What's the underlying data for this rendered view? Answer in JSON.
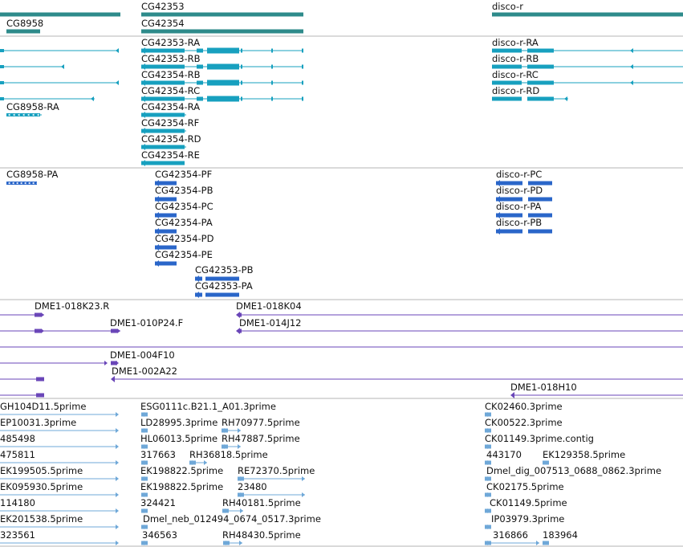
{
  "colors": {
    "gene": "#2e8b8b",
    "transcript": "#17a0bf",
    "cds": "#2a66c9",
    "clone": "#6a46b8",
    "est": "#6fa8d8",
    "separator": "#b4b4b4"
  },
  "tracks": {
    "genes": [
      {
        "label": "CG8958",
        "icon": "gene-bar"
      },
      {
        "label": "CG42353",
        "icon": "gene-bar"
      },
      {
        "label": "CG42354",
        "icon": "gene-bar"
      },
      {
        "label": "disco-r",
        "icon": "gene-bar"
      }
    ],
    "transcripts": [
      {
        "label": "CG8958-RA"
      },
      {
        "label": "CG42353-RA"
      },
      {
        "label": "CG42353-RB"
      },
      {
        "label": "CG42354-RB"
      },
      {
        "label": "CG42354-RC"
      },
      {
        "label": "CG42354-RA"
      },
      {
        "label": "CG42354-RF"
      },
      {
        "label": "CG42354-RD"
      },
      {
        "label": "CG42354-RE"
      },
      {
        "label": "disco-r-RA"
      },
      {
        "label": "disco-r-RB"
      },
      {
        "label": "disco-r-RC"
      },
      {
        "label": "disco-r-RD"
      }
    ],
    "proteins": [
      {
        "label": "CG8958-PA"
      },
      {
        "label": "CG42354-PF"
      },
      {
        "label": "CG42354-PB"
      },
      {
        "label": "CG42354-PC"
      },
      {
        "label": "CG42354-PA"
      },
      {
        "label": "CG42354-PD"
      },
      {
        "label": "CG42354-PE"
      },
      {
        "label": "CG42353-PB"
      },
      {
        "label": "CG42353-PA"
      },
      {
        "label": "disco-r-PC"
      },
      {
        "label": "disco-r-PD"
      },
      {
        "label": "disco-r-PA"
      },
      {
        "label": "disco-r-PB"
      }
    ],
    "clones": [
      {
        "label": "DME1-018K23.R"
      },
      {
        "label": "DME1-010P24.F"
      },
      {
        "label": "DME1-018K04"
      },
      {
        "label": "DME1-014J12"
      },
      {
        "label": "DME1-004F10"
      },
      {
        "label": "DME1-002A22"
      },
      {
        "label": "DME1-018H10"
      }
    ],
    "ests": [
      {
        "label": "GH104D11.5prime"
      },
      {
        "label": "EP10031.3prime"
      },
      {
        "label": "485498"
      },
      {
        "label": "475811"
      },
      {
        "label": "EK199505.5prime"
      },
      {
        "label": "EK095930.5prime"
      },
      {
        "label": "114180"
      },
      {
        "label": "EK201538.5prime"
      },
      {
        "label": "323561"
      },
      {
        "label": "ESG0111c.B21.1_A01.3prime"
      },
      {
        "label": "LD28995.3prime"
      },
      {
        "label": "RH70977.5prime"
      },
      {
        "label": "HL06013.5prime"
      },
      {
        "label": "RH47887.5prime"
      },
      {
        "label": "317663"
      },
      {
        "label": "RH36818.5prime"
      },
      {
        "label": "EK198822.5prime"
      },
      {
        "label": "RE72370.5prime"
      },
      {
        "label": "EK198822.5prime"
      },
      {
        "label": "23480"
      },
      {
        "label": "324421"
      },
      {
        "label": "RH40181.5prime"
      },
      {
        "label": "Dmel_neb_012494_0674_0517.3prime"
      },
      {
        "label": "346563"
      },
      {
        "label": "RH48430.5prime"
      },
      {
        "label": "CK02460.3prime"
      },
      {
        "label": "CK00522.3prime"
      },
      {
        "label": "CK01149.3prime.contig"
      },
      {
        "label": "443170"
      },
      {
        "label": "EK129358.5prime"
      },
      {
        "label": "Dmel_dig_007513_0688_0862.3prime"
      },
      {
        "label": "CK02175.5prime"
      },
      {
        "label": "CK01149.5prime"
      },
      {
        "label": "IP03979.3prime"
      },
      {
        "label": "316866"
      },
      {
        "label": "183964"
      }
    ]
  }
}
